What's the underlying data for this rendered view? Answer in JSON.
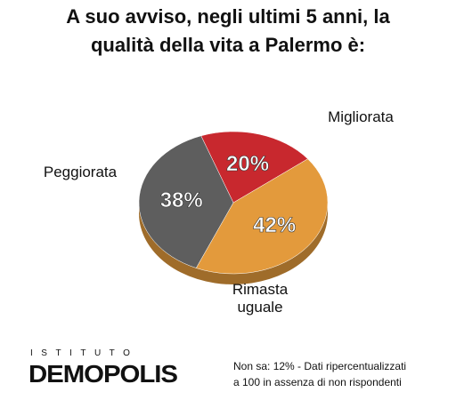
{
  "chart_data": {
    "type": "pie",
    "title": [
      "A suo avviso, negli ultimi 5 anni, la",
      "qualità della vita a Palermo è:"
    ],
    "categories": [
      "Migliorata",
      "Rimasta uguale",
      "Peggiorata"
    ],
    "values": [
      20,
      42,
      38
    ],
    "value_labels": [
      "20%",
      "42%",
      "38%"
    ],
    "colors": [
      "#c8282e",
      "#e39a3c",
      "#5e5e5e"
    ],
    "note": [
      "Non sa: 12% - Dati ripercentualizzati",
      "a 100 in assenza di non rispondenti"
    ],
    "logo": {
      "top": "ISTITUTO",
      "bottom": "DEMOPOLIS"
    }
  }
}
